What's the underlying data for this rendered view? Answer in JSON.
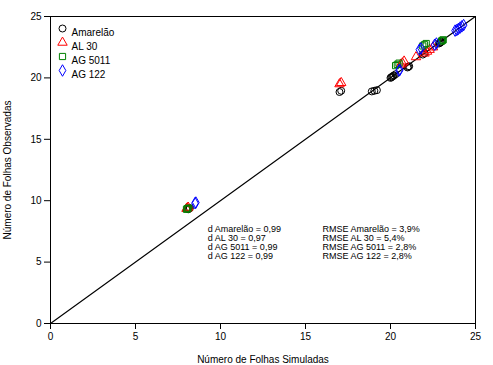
{
  "chart_data": {
    "type": "scatter",
    "xlabel": "Número de Folhas Simuladas",
    "ylabel": "Número de Folhas Observadas",
    "xlim": [
      0,
      25
    ],
    "ylim": [
      0,
      25
    ],
    "xticks": [
      0,
      5,
      10,
      15,
      20,
      25
    ],
    "yticks": [
      0,
      5,
      10,
      15,
      20,
      25
    ],
    "grid": false,
    "legend": "upper left",
    "series": [
      {
        "type": "line",
        "color": "black",
        "line_style": "solid",
        "x": [
          0,
          25
        ],
        "y": [
          0,
          25
        ]
      },
      {
        "name": "Amarelão",
        "color": "black",
        "marker": "circle",
        "x": [
          8.1,
          8.15,
          8.2,
          17.0,
          17.1,
          18.9,
          19.05,
          19.2,
          20.0,
          20.05,
          20.1,
          20.15,
          20.2,
          20.3,
          21.0,
          21.05,
          21.1,
          21.9,
          22.0,
          22.85,
          22.9,
          22.95,
          23.0
        ],
        "y": [
          9.3,
          9.35,
          9.4,
          18.85,
          18.95,
          18.9,
          18.95,
          19.0,
          20.0,
          20.05,
          20.1,
          20.15,
          20.2,
          20.3,
          20.85,
          20.9,
          20.95,
          21.9,
          22.0,
          22.8,
          22.85,
          22.9,
          22.95
        ]
      },
      {
        "name": "AL 30",
        "color": "red",
        "marker": "triangle",
        "x": [
          8.0,
          8.05,
          8.1,
          17.0,
          17.1,
          20.6,
          20.7,
          20.8,
          21.5,
          22.0,
          22.15,
          22.3,
          22.5
        ],
        "y": [
          9.35,
          9.4,
          9.45,
          19.5,
          19.6,
          21.1,
          21.2,
          21.35,
          21.7,
          22.0,
          22.15,
          22.3,
          22.5
        ]
      },
      {
        "name": "AG 5011",
        "color": "green",
        "marker": "square",
        "x": [
          8.0,
          8.05,
          8.1,
          20.3,
          20.4,
          20.5,
          21.9,
          22.0,
          22.1,
          23.0,
          23.05,
          23.1
        ],
        "y": [
          9.3,
          9.35,
          9.4,
          21.0,
          21.1,
          21.2,
          22.6,
          22.7,
          22.8,
          23.0,
          23.05,
          23.1
        ]
      },
      {
        "name": "AG 122",
        "color": "blue",
        "marker": "diamond",
        "x": [
          8.5,
          8.55,
          20.5,
          20.55,
          21.7,
          21.8,
          22.6,
          22.7,
          23.8,
          23.9,
          24.0,
          24.1,
          24.2,
          24.3
        ],
        "y": [
          9.8,
          9.85,
          20.6,
          20.65,
          22.3,
          22.4,
          22.7,
          22.8,
          23.85,
          23.9,
          24.0,
          24.1,
          24.2,
          24.3
        ]
      }
    ],
    "annotations": [
      "d Amarelão = 0,99\nd AL 30 = 0,97\nd AG 5011 = 0,99\nd AG 122 = 0,99",
      "RMSE Amarelão = 3,9%\nRMSE AL 30 = 5,4%\nRMSE AG 5011 = 2,8%\nRMSE AG 122 = 2,8%"
    ]
  }
}
